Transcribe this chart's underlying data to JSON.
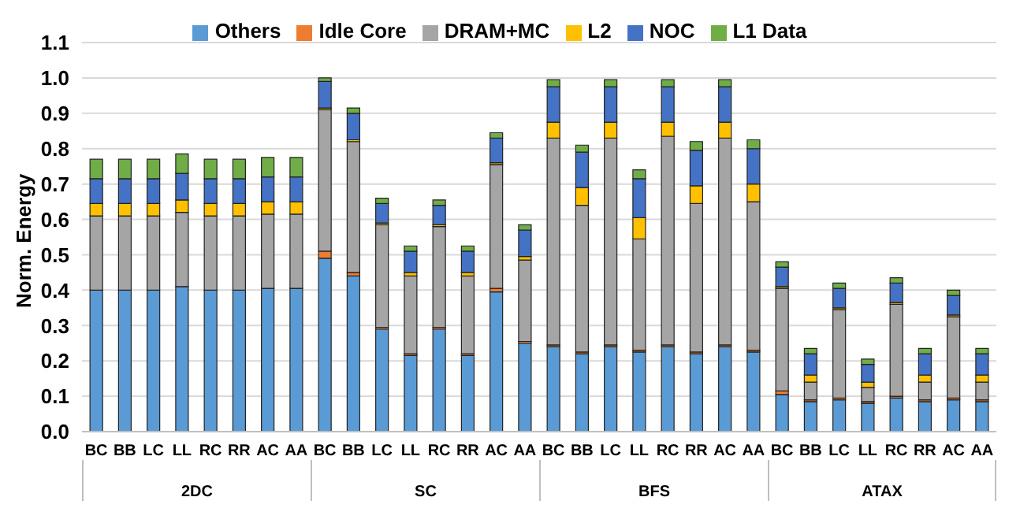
{
  "chart_data": {
    "type": "bar",
    "stacked": true,
    "ylabel": "Norm. Energy",
    "legend": "top",
    "grid": "y",
    "categories": [
      "BC",
      "BB",
      "LC",
      "LL",
      "RC",
      "RR",
      "AC",
      "AA",
      "BC",
      "BB",
      "LC",
      "LL",
      "RC",
      "RR",
      "AC",
      "AA",
      "BC",
      "BB",
      "LC",
      "LL",
      "RC",
      "RR",
      "AC",
      "AA",
      "BC",
      "BB",
      "LC",
      "LL",
      "RC",
      "RR",
      "AC",
      "AA"
    ],
    "annotations": [
      "2DC",
      "SC",
      "BFS",
      "ATAX"
    ],
    "ylim": [
      0,
      1.1
    ],
    "yticks": [
      {
        "value": 0,
        "label": "0.0"
      },
      0.1,
      0.2,
      0.3,
      0.4,
      0.5,
      0.6,
      0.7,
      0.8,
      0.9,
      {
        "value": 1,
        "label": "1.0"
      },
      1.1
    ],
    "series": [
      {
        "name": "Others",
        "color": "#5b9bd5",
        "values": [
          0.4,
          0.4,
          0.4,
          0.41,
          0.4,
          0.4,
          0.405,
          0.405,
          0.49,
          0.44,
          0.29,
          0.215,
          0.29,
          0.215,
          0.395,
          0.25,
          0.24,
          0.22,
          0.24,
          0.225,
          0.24,
          0.22,
          0.24,
          0.225,
          0.105,
          0.085,
          0.09,
          0.08,
          0.095,
          0.085,
          0.09,
          0.085
        ]
      },
      {
        "name": "Idle Core",
        "color": "#ed7d31",
        "values": [
          0,
          0,
          0,
          0,
          0,
          0,
          0,
          0,
          0.02,
          0.01,
          0.005,
          0.005,
          0.005,
          0.005,
          0.01,
          0.005,
          0.005,
          0.005,
          0.005,
          0.005,
          0.005,
          0.005,
          0.005,
          0.005,
          0.01,
          0.005,
          0.005,
          0.005,
          0.005,
          0.005,
          0.005,
          0.005
        ]
      },
      {
        "name": "DRAM+MC",
        "color": "#a5a5a5",
        "values": [
          0.21,
          0.21,
          0.21,
          0.21,
          0.21,
          0.21,
          0.21,
          0.21,
          0.4,
          0.37,
          0.29,
          0.22,
          0.285,
          0.22,
          0.35,
          0.23,
          0.585,
          0.415,
          0.585,
          0.315,
          0.59,
          0.42,
          0.585,
          0.42,
          0.29,
          0.05,
          0.25,
          0.04,
          0.26,
          0.05,
          0.23,
          0.05
        ]
      },
      {
        "name": "L2",
        "color": "#ffc000",
        "values": [
          0.035,
          0.035,
          0.035,
          0.035,
          0.035,
          0.035,
          0.035,
          0.035,
          0.005,
          0.005,
          0.005,
          0.01,
          0.005,
          0.01,
          0.005,
          0.01,
          0.045,
          0.05,
          0.045,
          0.06,
          0.04,
          0.05,
          0.045,
          0.05,
          0.005,
          0.02,
          0.005,
          0.015,
          0.005,
          0.02,
          0.005,
          0.02
        ]
      },
      {
        "name": "NOC",
        "color": "#4472c4",
        "values": [
          0.07,
          0.07,
          0.07,
          0.075,
          0.07,
          0.07,
          0.07,
          0.07,
          0.075,
          0.075,
          0.055,
          0.06,
          0.055,
          0.06,
          0.07,
          0.075,
          0.1,
          0.1,
          0.1,
          0.11,
          0.1,
          0.1,
          0.1,
          0.1,
          0.055,
          0.06,
          0.055,
          0.05,
          0.055,
          0.06,
          0.055,
          0.06
        ]
      },
      {
        "name": "L1 Data",
        "color": "#70ad47",
        "values": [
          0.055,
          0.055,
          0.055,
          0.055,
          0.055,
          0.055,
          0.055,
          0.055,
          0.01,
          0.015,
          0.015,
          0.015,
          0.015,
          0.015,
          0.015,
          0.015,
          0.02,
          0.02,
          0.02,
          0.025,
          0.02,
          0.025,
          0.02,
          0.025,
          0.015,
          0.015,
          0.015,
          0.015,
          0.015,
          0.015,
          0.015,
          0.015
        ]
      }
    ]
  }
}
